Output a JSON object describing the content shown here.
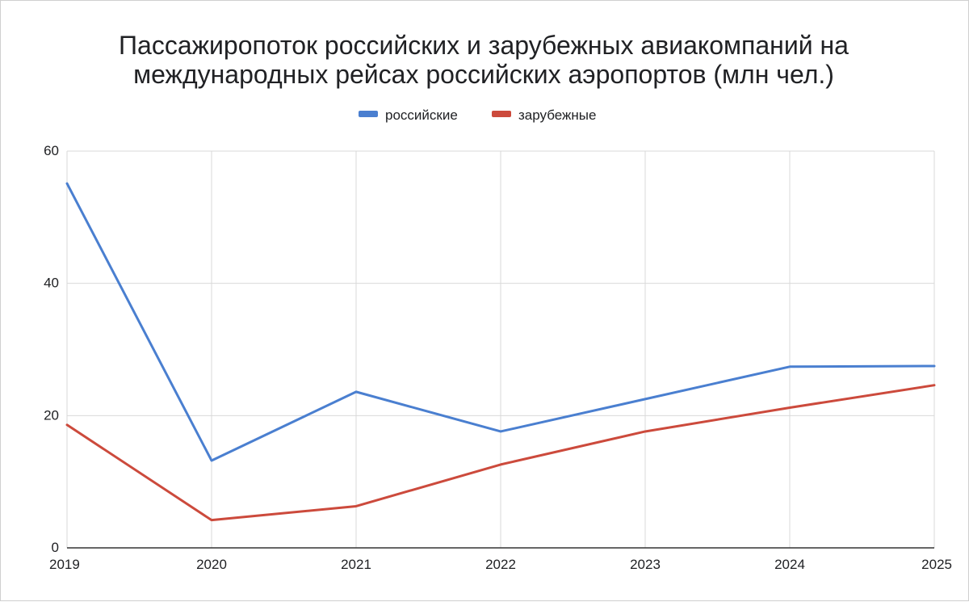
{
  "chart_data": {
    "type": "line",
    "title_lines": [
      "Пассажиропоток российских и зарубежных авиакомпаний на",
      "международных рейсах российских аэропортов (млн чел.)"
    ],
    "categories": [
      "2019",
      "2020",
      "2021",
      "2022",
      "2023",
      "2024",
      "2025"
    ],
    "series": [
      {
        "name": "российские",
        "color": "#4a7fd0",
        "values": [
          55.1,
          13.2,
          23.6,
          17.6,
          22.5,
          27.4,
          27.5
        ]
      },
      {
        "name": "зарубежные",
        "color": "#cc4a3c",
        "values": [
          18.6,
          4.2,
          6.3,
          12.6,
          17.6,
          21.2,
          24.6
        ]
      }
    ],
    "yticks": [
      "0",
      "20",
      "40",
      "60"
    ],
    "ylim": [
      0,
      60
    ],
    "grid": true,
    "legend_position": "top-center",
    "xlabel": "",
    "ylabel": ""
  }
}
